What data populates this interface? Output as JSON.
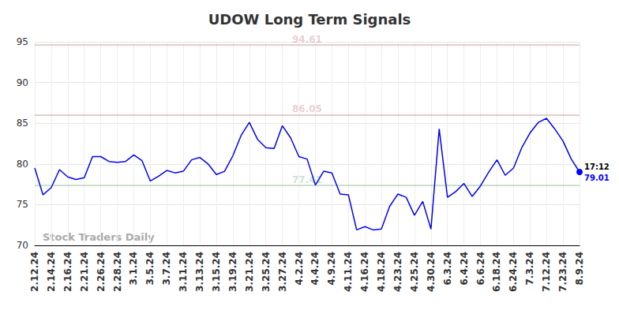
{
  "chart_data": {
    "type": "line",
    "title": "UDOW Long Term Signals",
    "categories": [
      "2.12.24",
      null,
      "2.14.24",
      null,
      "2.16.24",
      null,
      "2.21.24",
      null,
      "2.26.24",
      null,
      "2.28.24",
      null,
      "3.1.24",
      null,
      "3.5.24",
      null,
      "3.7.24",
      null,
      "3.11.24",
      null,
      "3.13.24",
      null,
      "3.15.24",
      null,
      "3.19.24",
      null,
      "3.21.24",
      null,
      "3.25.24",
      null,
      "3.27.24",
      null,
      "4.2.24",
      null,
      "4.4.24",
      null,
      "4.9.24",
      null,
      "4.11.24",
      null,
      "4.16.24",
      null,
      "4.18.24",
      null,
      "4.23.24",
      null,
      "4.25.24",
      null,
      "4.30.24",
      null,
      "6.3.24",
      null,
      "6.4.24",
      null,
      "6.6.24",
      null,
      "6.18.24",
      null,
      "6.24.24",
      null,
      "7.3.24",
      null,
      "7.12.24",
      null,
      "7.23.24",
      null,
      "8.9.24"
    ],
    "values": [
      79.5,
      76.2,
      77.1,
      79.3,
      78.4,
      78.1,
      78.3,
      80.9,
      80.9,
      80.3,
      80.2,
      80.3,
      81.1,
      80.4,
      77.9,
      78.5,
      79.2,
      78.9,
      79.1,
      80.5,
      80.8,
      80.0,
      78.7,
      79.1,
      81.0,
      83.5,
      85.1,
      83.0,
      82.0,
      81.9,
      84.7,
      83.2,
      80.9,
      80.6,
      77.4,
      79.1,
      78.9,
      76.3,
      76.2,
      71.9,
      72.3,
      71.9,
      72.0,
      74.8,
      76.3,
      75.9,
      73.7,
      75.4,
      72.0,
      84.3,
      75.9,
      76.6,
      77.6,
      76.0,
      77.3,
      79.0,
      80.5,
      78.6,
      79.5,
      82.0,
      83.8,
      85.1,
      85.6,
      84.3,
      82.8,
      80.6,
      79.01
    ],
    "color": "#0000ff",
    "ylim": [
      70,
      95
    ],
    "yticks": [
      70,
      75,
      80,
      85,
      90,
      95
    ],
    "grid": true,
    "reference_lines": [
      {
        "value": 94.61,
        "color": "#8b0000"
      },
      {
        "value": 86.05,
        "color": "#8b0000"
      },
      {
        "value": 77.41,
        "color": "#006400"
      }
    ],
    "last_point_note": "17:12",
    "watermark": "Stock Traders Daily"
  }
}
